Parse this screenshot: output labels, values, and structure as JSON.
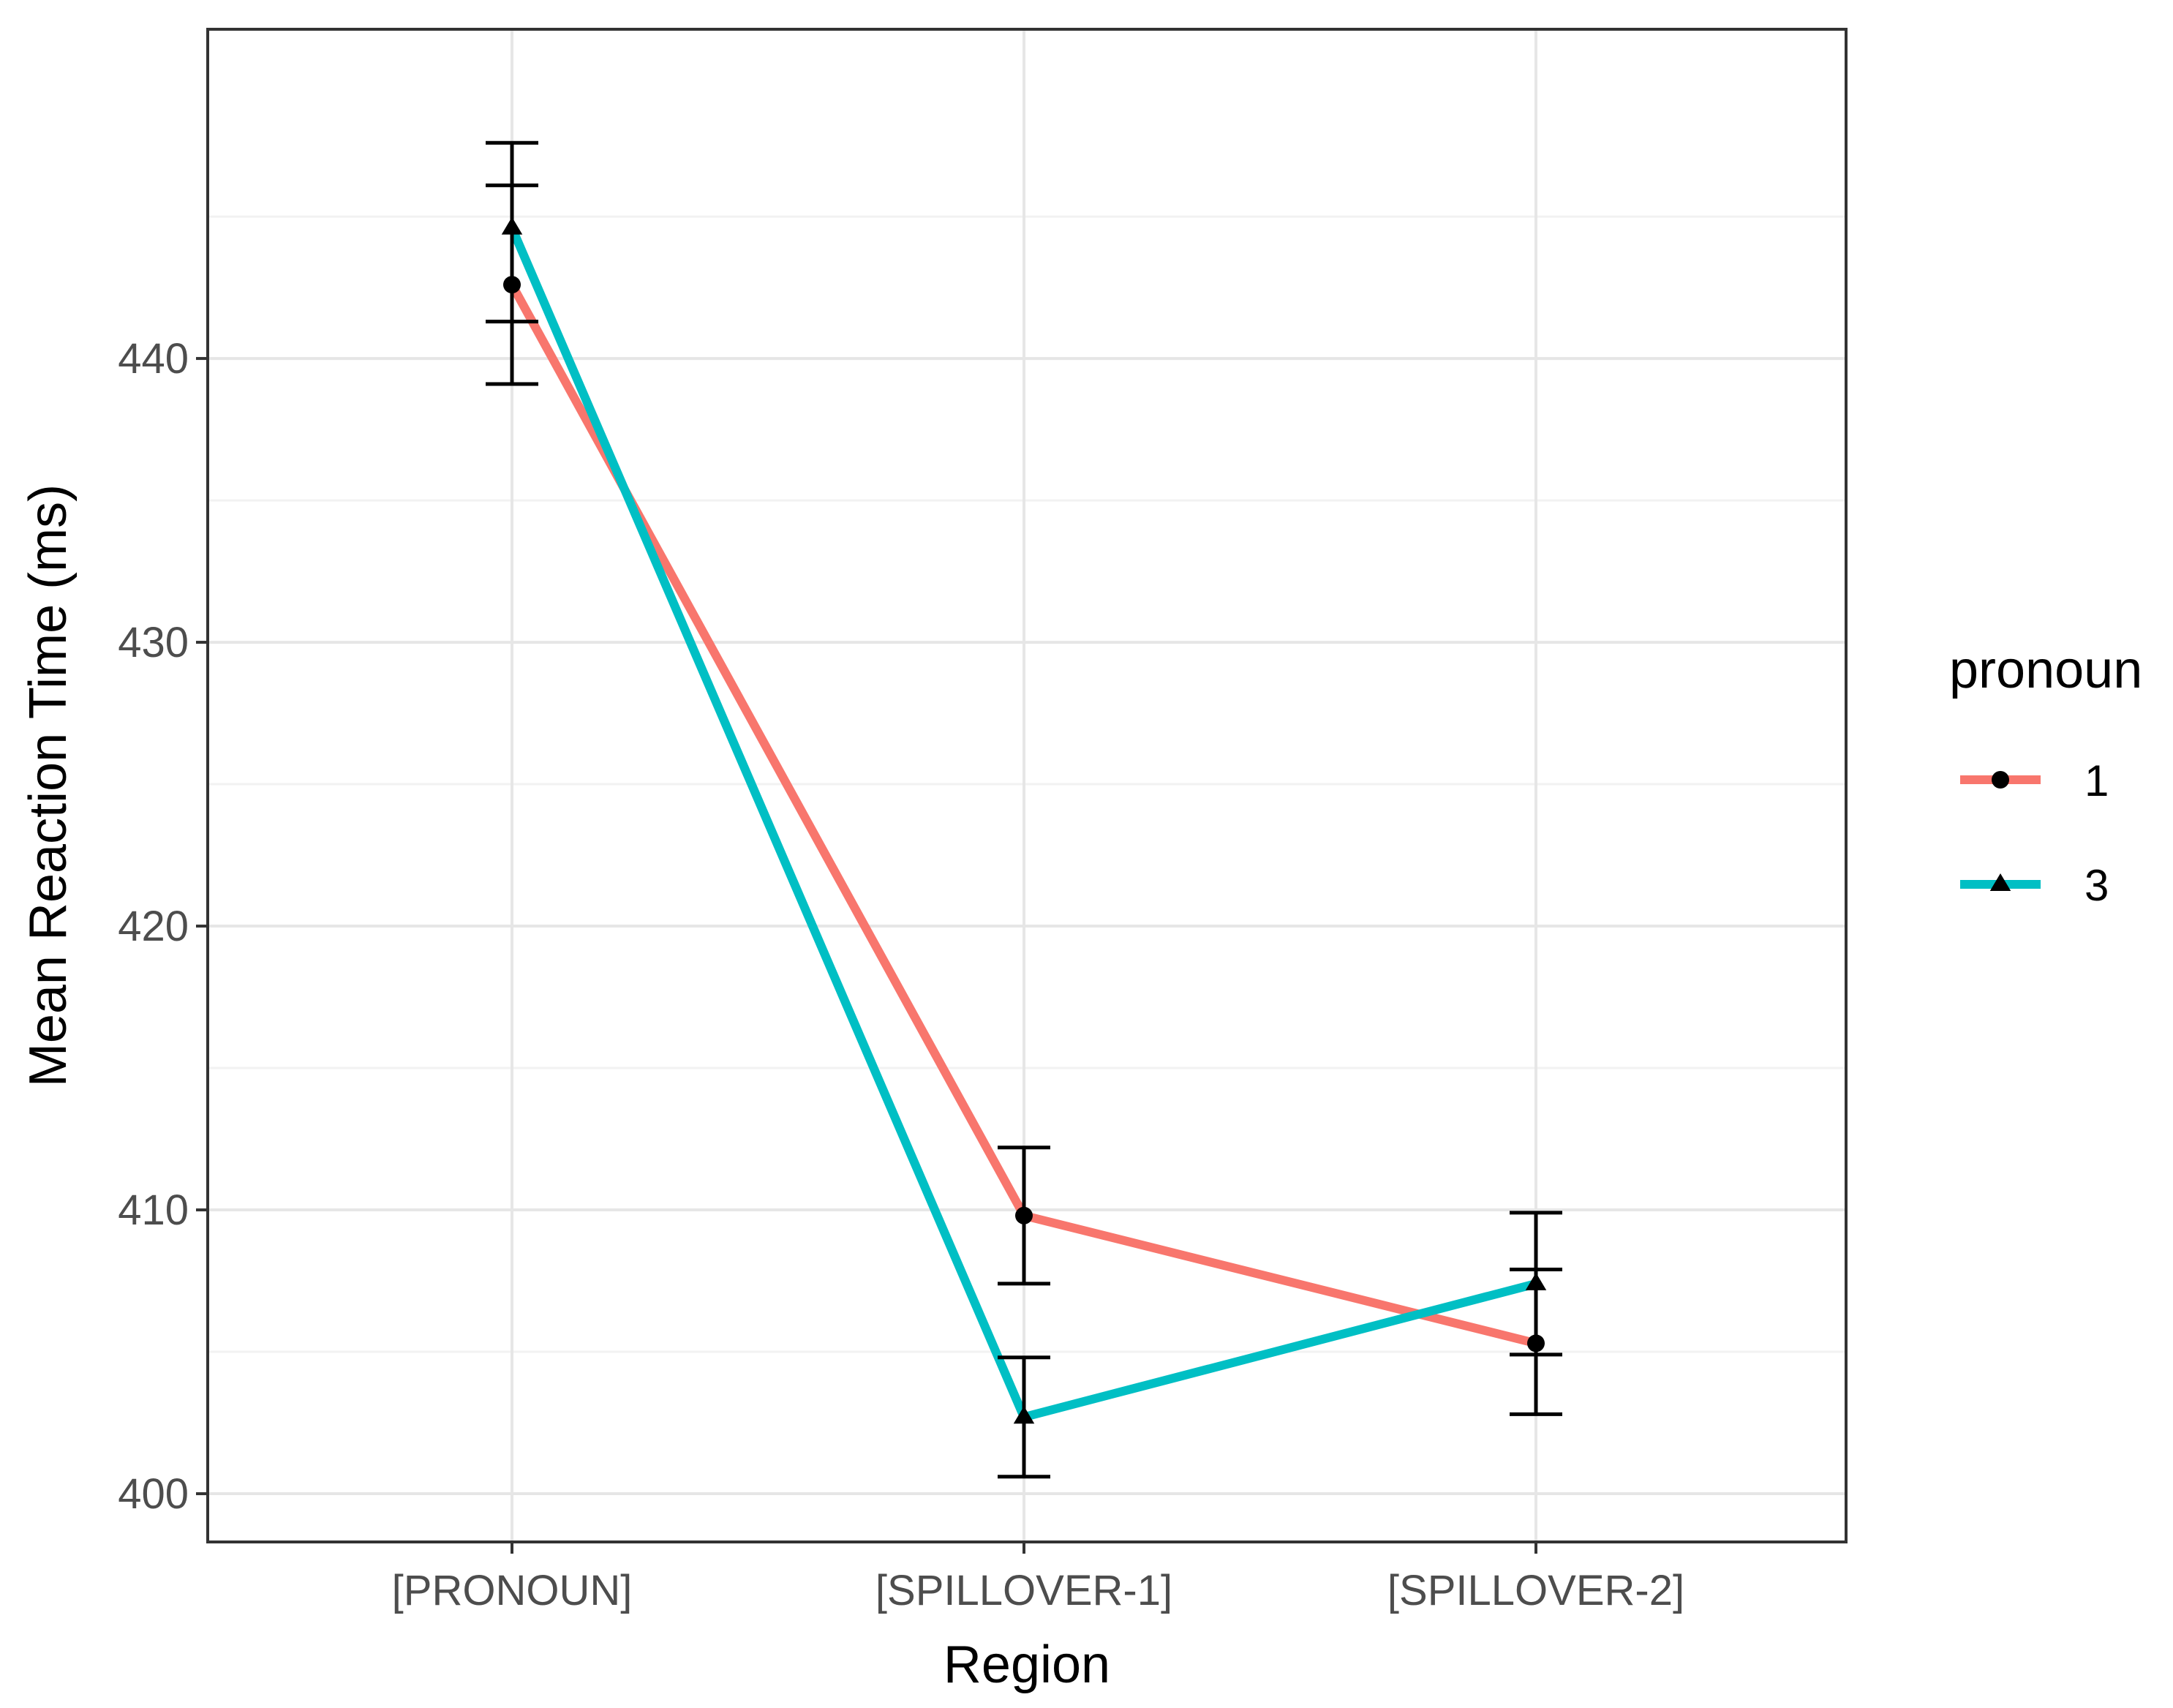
{
  "chart_data": {
    "type": "line",
    "title": "",
    "xlabel": "Region",
    "ylabel": "Mean Reaction Time (ms)",
    "categories": [
      "[PRONOUN]",
      "[SPILLOVER-1]",
      "[SPILLOVER-2]"
    ],
    "ylim": [
      398.3,
      451.6
    ],
    "yticks": [
      400,
      410,
      420,
      430,
      440
    ],
    "ytick_labels": [
      "400",
      "410",
      "420",
      "430",
      "440"
    ],
    "grid": true,
    "legend": {
      "title": "pronoun",
      "position": "right"
    },
    "series": [
      {
        "name": "1",
        "color": "#F8766D",
        "marker": "circle",
        "values": [
          442.6,
          409.8,
          405.3
        ],
        "error_low": [
          439.1,
          407.4,
          402.8
        ],
        "error_high": [
          446.1,
          412.2,
          407.9
        ]
      },
      {
        "name": "3",
        "color": "#00BFC4",
        "marker": "triangle",
        "values": [
          444.6,
          402.7,
          407.4
        ],
        "error_low": [
          441.3,
          400.6,
          404.9
        ],
        "error_high": [
          447.6,
          404.8,
          409.9
        ]
      }
    ]
  }
}
